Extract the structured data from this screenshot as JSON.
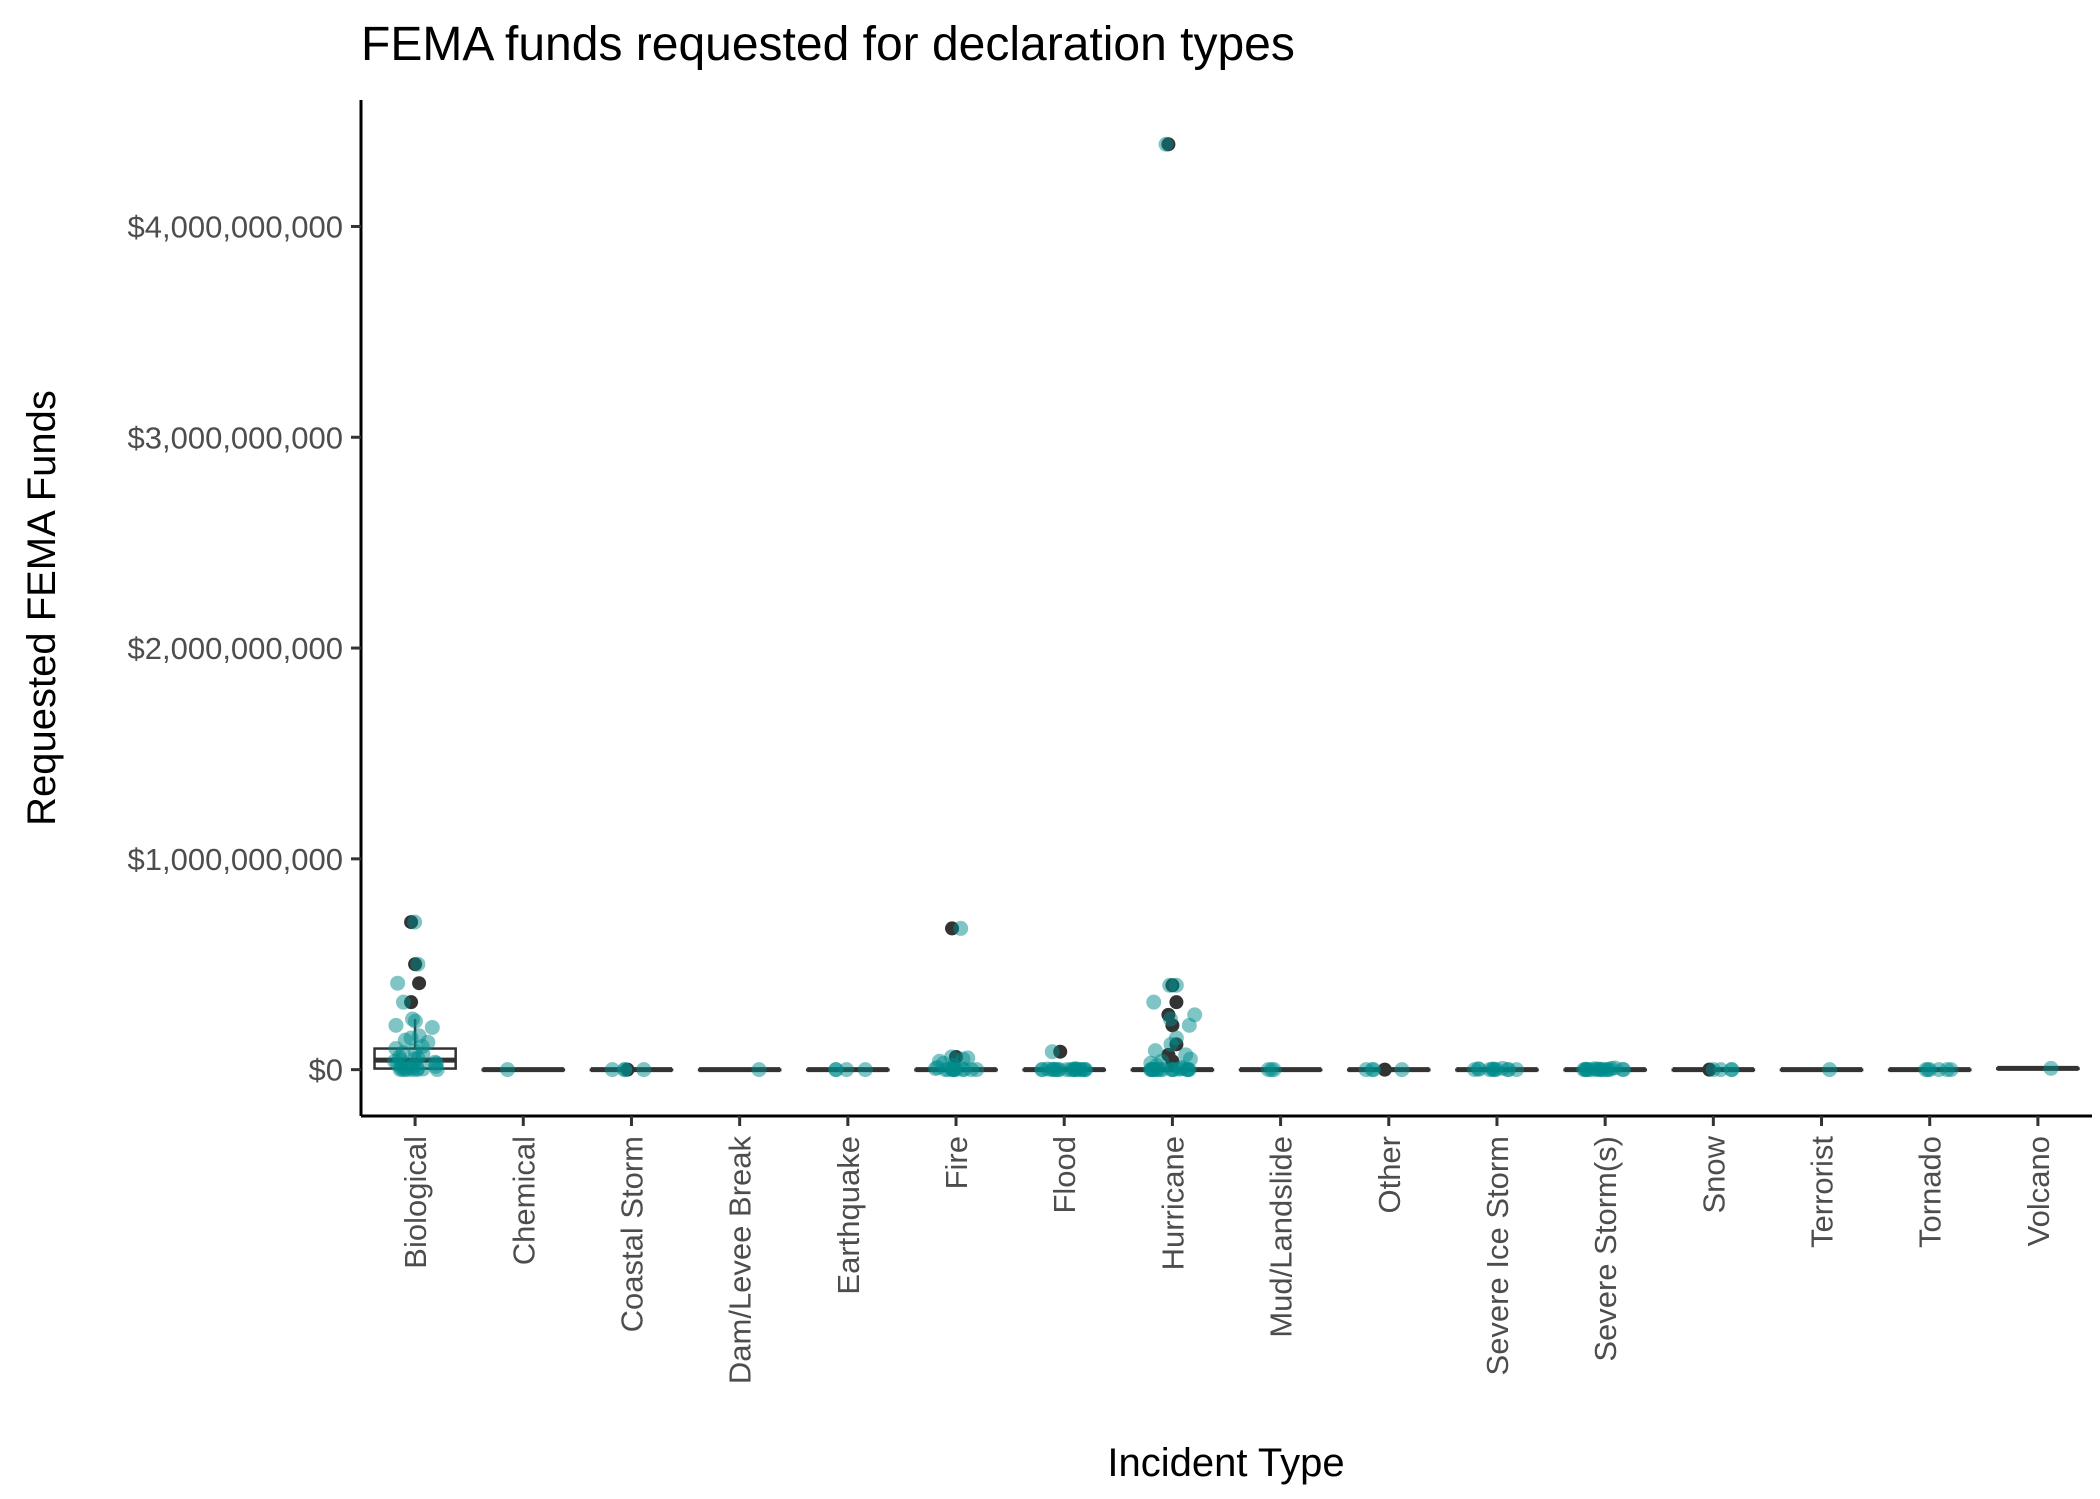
{
  "chart_data": {
    "type": "box",
    "title": "FEMA funds requested for declaration types",
    "xlabel": "Incident Type",
    "ylabel": "Requested FEMA Funds",
    "ylim": [
      -220000000,
      4600000000
    ],
    "yticks": [
      0,
      1000000000,
      2000000000,
      3000000000,
      4000000000
    ],
    "ytick_labels": [
      "$0",
      "$1,000,000,000",
      "$2,000,000,000",
      "$3,000,000,000",
      "$4,000,000,000"
    ],
    "grid": false,
    "legend": "none",
    "colors": {
      "points": "#008B8B",
      "outliers": "#333333",
      "box": "#333333"
    },
    "categories": [
      "Biological",
      "Chemical",
      "Coastal Storm",
      "Dam/Levee Break",
      "Earthquake",
      "Fire",
      "Flood",
      "Hurricane",
      "Mud/Landslide",
      "Other",
      "Severe Ice Storm",
      "Severe Storm(s)",
      "Snow",
      "Terrorist",
      "Tornado",
      "Volcano"
    ],
    "boxes": [
      {
        "category": "Biological",
        "q1": 5000000,
        "median": 45000000,
        "q3": 100000000,
        "whisker_low": 0,
        "whisker_high": 240000000,
        "outliers": [
          700000000,
          500000000,
          410000000,
          320000000
        ]
      },
      {
        "category": "Chemical",
        "q1": 0,
        "median": 0,
        "q3": 0,
        "whisker_low": 0,
        "whisker_high": 0,
        "outliers": []
      },
      {
        "category": "Coastal Storm",
        "q1": 0,
        "median": 0,
        "q3": 0,
        "whisker_low": 0,
        "whisker_high": 0,
        "outliers": [
          0
        ]
      },
      {
        "category": "Dam/Levee Break",
        "q1": 0,
        "median": 0,
        "q3": 0,
        "whisker_low": 0,
        "whisker_high": 0,
        "outliers": []
      },
      {
        "category": "Earthquake",
        "q1": 0,
        "median": 0,
        "q3": 0,
        "whisker_low": 0,
        "whisker_high": 0,
        "outliers": []
      },
      {
        "category": "Fire",
        "q1": 0,
        "median": 0,
        "q3": 0,
        "whisker_low": 0,
        "whisker_high": 0,
        "outliers": [
          670000000,
          60000000
        ]
      },
      {
        "category": "Flood",
        "q1": 0,
        "median": 0,
        "q3": 0,
        "whisker_low": 0,
        "whisker_high": 0,
        "outliers": [
          85000000
        ]
      },
      {
        "category": "Hurricane",
        "q1": 0,
        "median": 0,
        "q3": 0,
        "whisker_low": 0,
        "whisker_high": 0,
        "outliers": [
          4390000000,
          400000000,
          320000000,
          260000000,
          210000000,
          120000000,
          70000000,
          40000000
        ]
      },
      {
        "category": "Mud/Landslide",
        "q1": 0,
        "median": 0,
        "q3": 0,
        "whisker_low": 0,
        "whisker_high": 0,
        "outliers": []
      },
      {
        "category": "Other",
        "q1": 0,
        "median": 0,
        "q3": 0,
        "whisker_low": 0,
        "whisker_high": 0,
        "outliers": [
          0
        ]
      },
      {
        "category": "Severe Ice Storm",
        "q1": 0,
        "median": 0,
        "q3": 0,
        "whisker_low": 0,
        "whisker_high": 0,
        "outliers": []
      },
      {
        "category": "Severe Storm(s)",
        "q1": 0,
        "median": 0,
        "q3": 0,
        "whisker_low": 0,
        "whisker_high": 0,
        "outliers": []
      },
      {
        "category": "Snow",
        "q1": 0,
        "median": 0,
        "q3": 0,
        "whisker_low": 0,
        "whisker_high": 0,
        "outliers": [
          0
        ]
      },
      {
        "category": "Terrorist",
        "q1": 0,
        "median": 0,
        "q3": 0,
        "whisker_low": 0,
        "whisker_high": 0,
        "outliers": []
      },
      {
        "category": "Tornado",
        "q1": 0,
        "median": 0,
        "q3": 0,
        "whisker_low": 0,
        "whisker_high": 0,
        "outliers": []
      },
      {
        "category": "Volcano",
        "q1": 6000000,
        "median": 6000000,
        "q3": 6000000,
        "whisker_low": 6000000,
        "whisker_high": 6000000,
        "outliers": []
      }
    ],
    "points": [
      {
        "category": "Biological",
        "values": [
          700000000,
          500000000,
          410000000,
          320000000,
          240000000,
          230000000,
          210000000,
          200000000,
          160000000,
          150000000,
          140000000,
          130000000,
          110000000,
          100000000,
          90000000,
          80000000,
          75000000,
          60000000,
          55000000,
          50000000,
          45000000,
          40000000,
          35000000,
          30000000,
          25000000,
          20000000,
          15000000,
          10000000,
          8000000,
          5000000,
          3000000,
          2000000,
          1000000,
          500000,
          0,
          0,
          0,
          0
        ]
      },
      {
        "category": "Chemical",
        "values": [
          0
        ]
      },
      {
        "category": "Coastal Storm",
        "values": [
          0,
          0,
          0,
          0
        ]
      },
      {
        "category": "Dam/Levee Break",
        "values": [
          0
        ]
      },
      {
        "category": "Earthquake",
        "values": [
          0,
          0,
          0,
          0
        ]
      },
      {
        "category": "Fire",
        "values": [
          670000000,
          60000000,
          55000000,
          50000000,
          40000000,
          30000000,
          20000000,
          10000000,
          5000000,
          3000000,
          1000000,
          0,
          0,
          0,
          0,
          0,
          0,
          0,
          0,
          0,
          0
        ]
      },
      {
        "category": "Flood",
        "values": [
          85000000,
          5000000,
          3000000,
          2000000,
          1000000,
          500000,
          0,
          0,
          0,
          0,
          0,
          0,
          0,
          0,
          0,
          0,
          0,
          0,
          0,
          0,
          0,
          0
        ]
      },
      {
        "category": "Hurricane",
        "values": [
          4390000000,
          400000000,
          400000000,
          320000000,
          260000000,
          240000000,
          210000000,
          150000000,
          120000000,
          90000000,
          70000000,
          50000000,
          40000000,
          30000000,
          20000000,
          10000000,
          5000000,
          2000000,
          0,
          0,
          0,
          0,
          0,
          0,
          0,
          0,
          0,
          0,
          0,
          0,
          0,
          0,
          0,
          0
        ]
      },
      {
        "category": "Mud/Landslide",
        "values": [
          0,
          0,
          0
        ]
      },
      {
        "category": "Other",
        "values": [
          0,
          0,
          0,
          0
        ]
      },
      {
        "category": "Severe Ice Storm",
        "values": [
          6000000,
          4000000,
          3000000,
          2000000,
          1000000,
          0,
          0,
          0,
          0,
          0,
          0,
          0
        ]
      },
      {
        "category": "Severe Storm(s)",
        "values": [
          8000000,
          6000000,
          4000000,
          3000000,
          2000000,
          1000000,
          0,
          0,
          0,
          0,
          0,
          0,
          0,
          0,
          0,
          0,
          0,
          0,
          0
        ]
      },
      {
        "category": "Snow",
        "values": [
          0,
          0,
          0,
          0
        ]
      },
      {
        "category": "Terrorist",
        "values": [
          0
        ]
      },
      {
        "category": "Tornado",
        "values": [
          0,
          0,
          0,
          0,
          0,
          0
        ]
      },
      {
        "category": "Volcano",
        "values": [
          6000000
        ]
      }
    ]
  }
}
